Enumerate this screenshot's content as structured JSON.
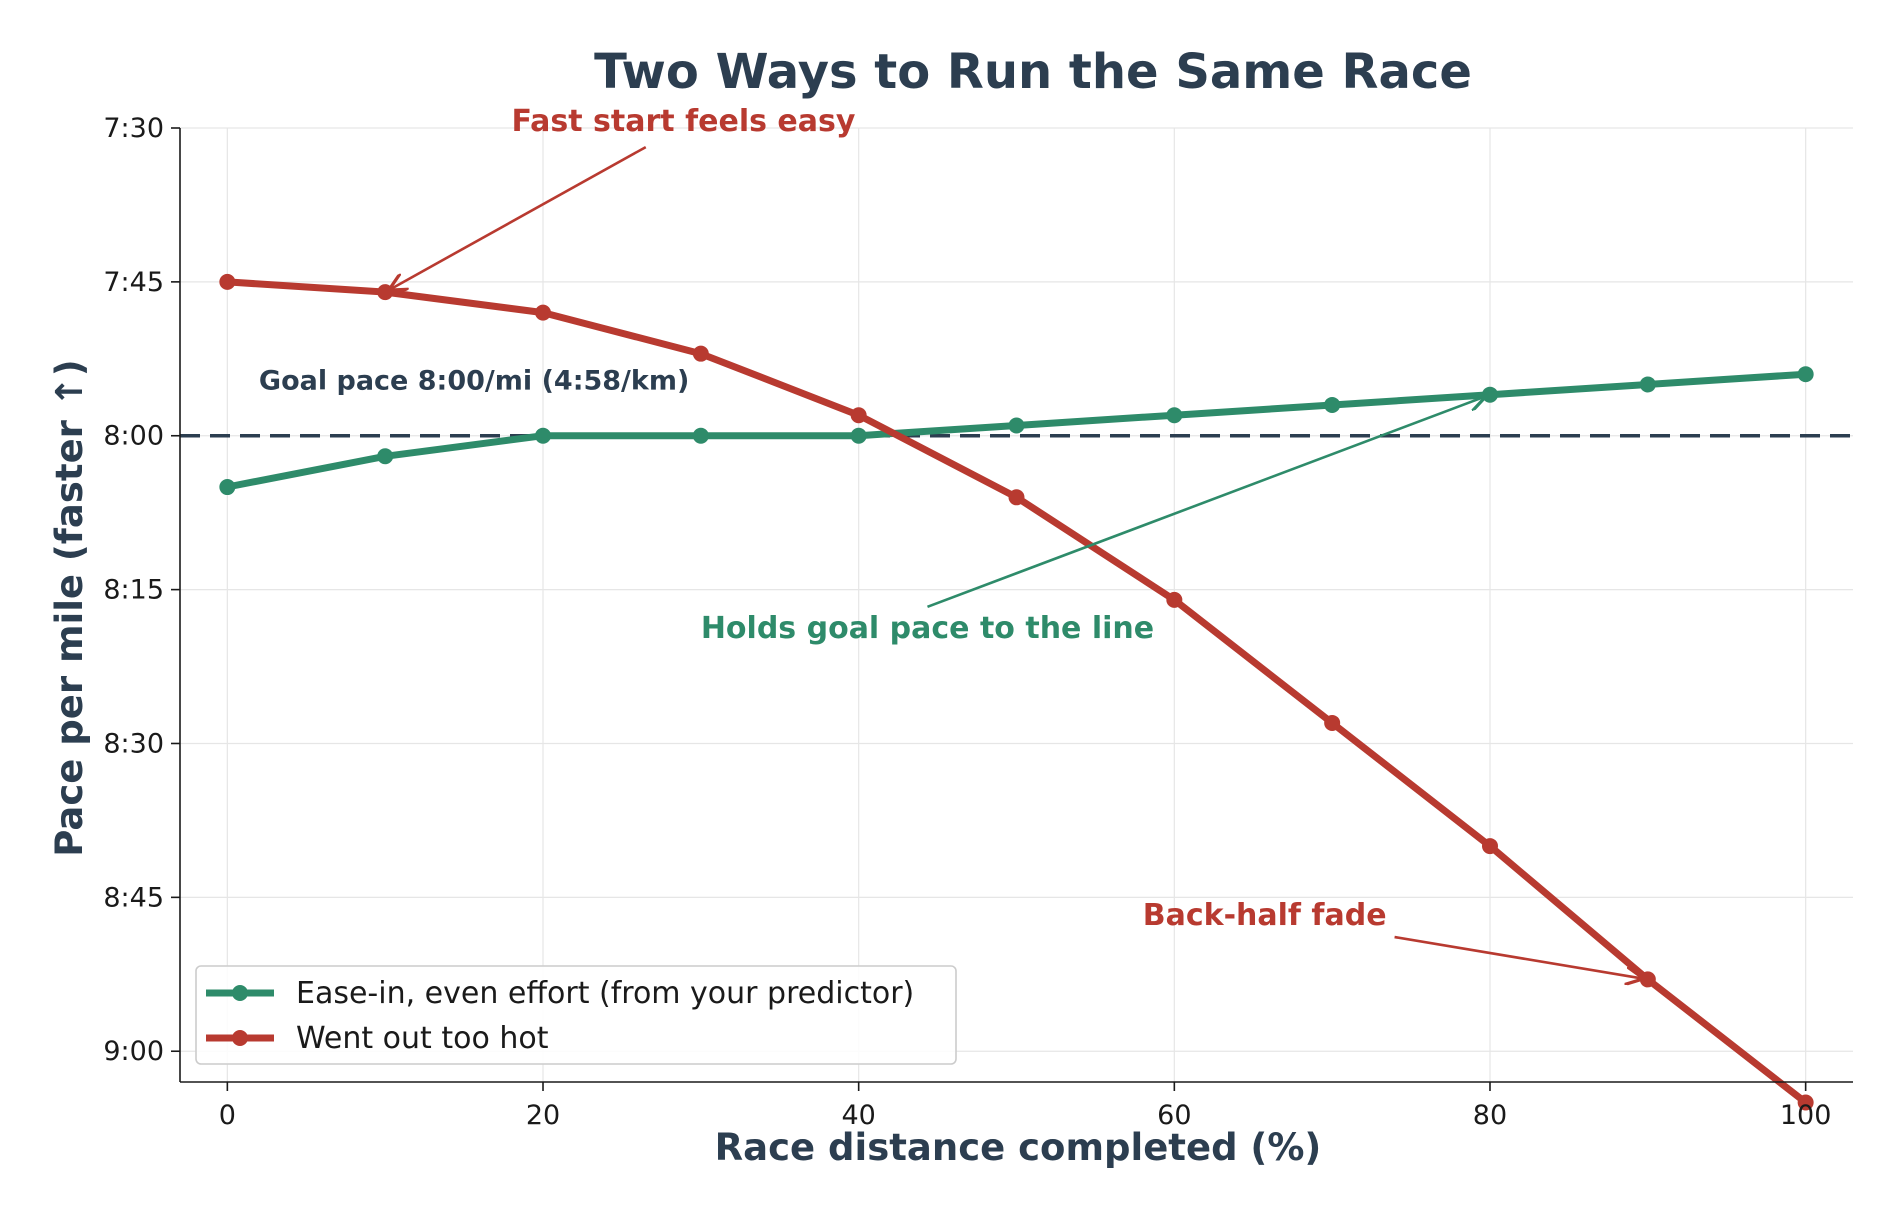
{
  "chart_data": {
    "type": "line",
    "title": "Two Ways to Run the Same Race",
    "xlabel": "Race distance completed (%)",
    "ylabel": "Pace per mile  (faster ↑)",
    "xlim": [
      -3,
      103
    ],
    "ylim_seconds_per_mile": [
      543,
      450
    ],
    "y_inverted": true,
    "grid": true,
    "x_ticks": [
      0,
      20,
      40,
      60,
      80,
      100
    ],
    "y_ticks": [
      {
        "value": 450,
        "label": "7:30"
      },
      {
        "value": 465,
        "label": "7:45"
      },
      {
        "value": 480,
        "label": "8:00"
      },
      {
        "value": 495,
        "label": "8:15"
      },
      {
        "value": 510,
        "label": "8:30"
      },
      {
        "value": 525,
        "label": "8:45"
      },
      {
        "value": 540,
        "label": "9:00"
      }
    ],
    "x": [
      0,
      10,
      20,
      30,
      40,
      50,
      60,
      70,
      80,
      90,
      100
    ],
    "series": [
      {
        "name": "Ease-in, even effort (from your predictor)",
        "color": "#2e8b6a",
        "values": [
          485,
          482,
          480,
          480,
          480,
          479,
          478,
          477,
          476,
          475,
          474
        ]
      },
      {
        "name": "Went out too hot",
        "color": "#b83a30",
        "values": [
          465,
          466,
          468,
          472,
          478,
          486,
          496,
          508,
          520,
          533,
          545
        ]
      }
    ],
    "reference_line": {
      "y": 480,
      "label": "Goal pace  8:00/mi (4:58/km)",
      "color": "#2c3e50",
      "style": "dashed"
    },
    "annotations": [
      {
        "text": "Fast start feels easy",
        "color": "#b83a30",
        "target": {
          "x": 10,
          "y": 466
        },
        "text_pos": {
          "x": 18,
          "y": 450.3
        }
      },
      {
        "text": "Holds goal pace to the line",
        "color": "#2e8b6a",
        "target": {
          "x": 80,
          "y": 476
        },
        "text_pos": {
          "x": 30,
          "y": 499.7
        }
      },
      {
        "text": "Back-half fade",
        "color": "#b83a30",
        "target": {
          "x": 90,
          "y": 533
        },
        "text_pos": {
          "x": 58,
          "y": 527.7
        }
      }
    ],
    "legend_position": "lower-left"
  }
}
